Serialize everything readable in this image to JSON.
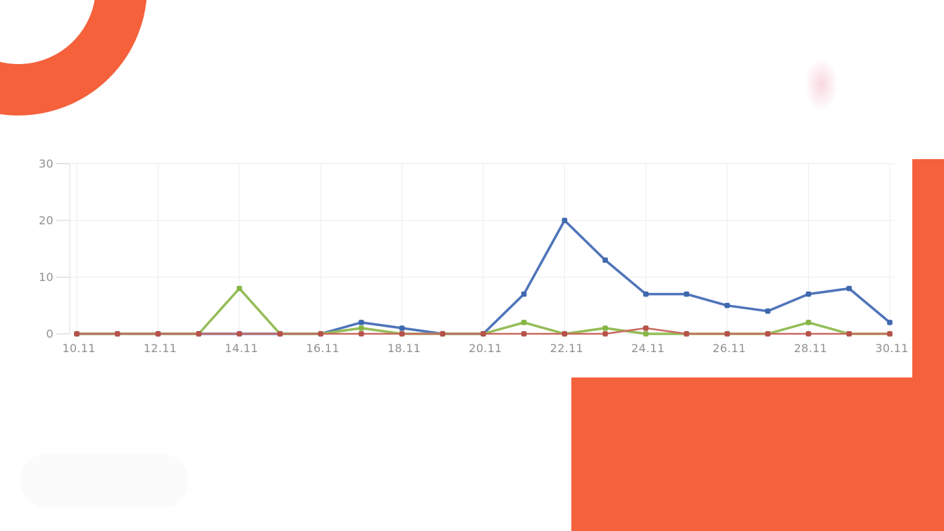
{
  "decor": {
    "accent_color": "#F4613B",
    "faint_pill_color": "#FBFBFB",
    "pink_smudge_color": "#F3B7C6"
  },
  "chart_data": {
    "type": "line",
    "title": "",
    "xlabel": "",
    "ylabel": "",
    "categories": [
      "10.11",
      "11.11",
      "12.11",
      "13.11",
      "14.11",
      "15.11",
      "16.11",
      "17.11",
      "18.11",
      "19.11",
      "20.11",
      "21.11",
      "22.11",
      "23.11",
      "24.11",
      "25.11",
      "26.11",
      "27.11",
      "28.11",
      "29.11",
      "30.11"
    ],
    "x_tick_labels": [
      "10.11",
      "12.11",
      "14.11",
      "16.11",
      "18.11",
      "20.11",
      "22.11",
      "24.11",
      "26.11",
      "28.11",
      "30.11"
    ],
    "y_ticks": [
      0,
      10,
      20,
      30
    ],
    "ylim": [
      0,
      30
    ],
    "grid": true,
    "legend": "none",
    "series": [
      {
        "name": "series-blue",
        "color": "#4F74BA",
        "marker_color": "#3F68AE",
        "line_width": 3.5,
        "values": [
          0,
          0,
          0,
          0,
          0,
          0,
          0,
          2,
          1,
          0,
          0,
          7,
          20,
          13,
          7,
          7,
          5,
          4,
          7,
          8,
          2
        ]
      },
      {
        "name": "series-green",
        "color": "#94BD58",
        "marker_color": "#85B544",
        "line_width": 3.5,
        "values": [
          0,
          0,
          0,
          0,
          8,
          0,
          0,
          1,
          0,
          0,
          0,
          2,
          0,
          1,
          0,
          0,
          0,
          0,
          2,
          0,
          0
        ]
      },
      {
        "name": "series-red",
        "color": "#C96A60",
        "marker_color": "#B5524A",
        "line_width": 2.5,
        "values": [
          0,
          0,
          0,
          0,
          0,
          0,
          0,
          0,
          0,
          0,
          0,
          0,
          0,
          0,
          1,
          0,
          0,
          0,
          0,
          0,
          0
        ]
      }
    ],
    "axis_text_color": "#909090",
    "grid_color": "#ECECEC",
    "axis_line_color": "#DCDCDC",
    "tick_color": "#CFCFCF"
  }
}
